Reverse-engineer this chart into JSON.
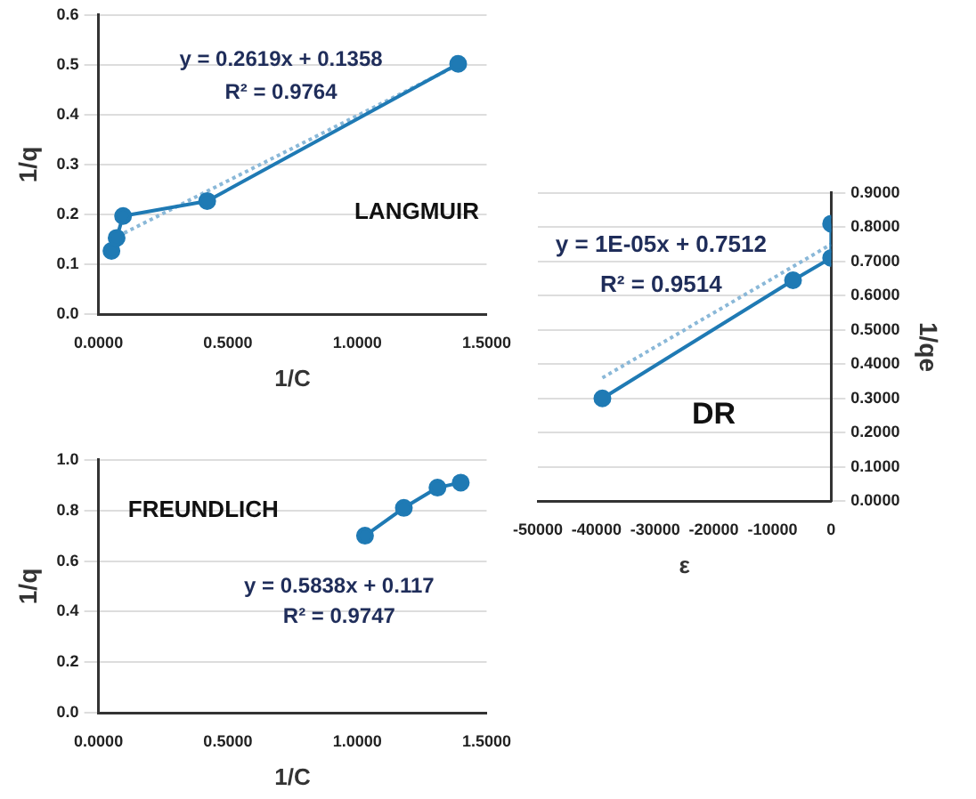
{
  "chart_data": [
    {
      "type": "line",
      "xlabel": "1/C",
      "ylabel": "1/q",
      "xlim": [
        0,
        1.5
      ],
      "ylim": [
        0,
        0.6
      ],
      "xticks": [
        {
          "value": 0,
          "label": "0.0000"
        },
        {
          "value": 0.5,
          "label": "0.5000"
        },
        {
          "value": 1,
          "label": "1.0000"
        },
        {
          "value": 1.5,
          "label": "1.5000"
        }
      ],
      "yticks": [
        {
          "value": 0,
          "label": "0.0"
        },
        0.1,
        0.2,
        0.3,
        0.4,
        0.5,
        0.6
      ],
      "grid": "y",
      "legend": false,
      "annotations": [
        "y = 0.2619x + 0.1358",
        "R² = 0.9764",
        "LANGMUIR"
      ],
      "series": [
        {
          "color": "#1f7ab4",
          "marker": "circle",
          "line_style": "solid",
          "x": [
            0.05,
            0.07,
            0.095,
            0.42,
            1.39
          ],
          "values": [
            0.127,
            0.153,
            0.197,
            0.227,
            0.502
          ]
        },
        {
          "type": "line",
          "color": "#8ab8d8",
          "marker": "none",
          "line_style": "dotted",
          "x": [
            0.05,
            1.39
          ],
          "values": [
            0.15,
            0.5
          ]
        }
      ]
    },
    {
      "type": "line",
      "xlabel": "1/C",
      "ylabel": "1/q",
      "xlim": [
        0,
        1.5
      ],
      "ylim": [
        0,
        1
      ],
      "xticks": [
        {
          "value": 0,
          "label": "0.0000"
        },
        {
          "value": 0.5,
          "label": "0.5000"
        },
        {
          "value": 1,
          "label": "1.0000"
        },
        {
          "value": 1.5,
          "label": "1.5000"
        }
      ],
      "yticks": [
        {
          "value": 0,
          "label": "0.0"
        },
        0.2,
        0.4,
        0.6,
        0.8,
        {
          "value": 1,
          "label": "1.0"
        }
      ],
      "grid": "y",
      "legend": false,
      "annotations": [
        "FREUNDLICH",
        "y = 0.5838x + 0.117",
        "R² = 0.9747"
      ],
      "series": [
        {
          "color": "#1f7ab4",
          "marker": "circle",
          "line_style": "solid",
          "x": [
            1.03,
            1.18,
            1.31,
            1.4
          ],
          "values": [
            0.7,
            0.81,
            0.89,
            0.91
          ]
        }
      ]
    },
    {
      "type": "line",
      "xlabel": "ε",
      "ylabel": "1/qe",
      "xlim": [
        -50000,
        0
      ],
      "ylim": [
        0,
        0.9
      ],
      "xticks": [
        -50000,
        -40000,
        -30000,
        -20000,
        -10000,
        0
      ],
      "yticks": [
        {
          "value": 0,
          "label": "0.0000"
        },
        {
          "value": 0.1,
          "label": "0.1000"
        },
        {
          "value": 0.2,
          "label": "0.2000"
        },
        {
          "value": 0.3,
          "label": "0.3000"
        },
        {
          "value": 0.4,
          "label": "0.4000"
        },
        {
          "value": 0.5,
          "label": "0.5000"
        },
        {
          "value": 0.6,
          "label": "0.6000"
        },
        {
          "value": 0.7,
          "label": "0.7000"
        },
        {
          "value": 0.8,
          "label": "0.8000"
        },
        {
          "value": 0.9,
          "label": "0.9000"
        }
      ],
      "grid": "y",
      "legend": false,
      "annotations": [
        "y = 1E-05x + 0.7512",
        "R² = 0.9514",
        "DR"
      ],
      "series": [
        {
          "color": "#1f7ab4",
          "marker": "circle",
          "line_style": "solid",
          "x": [
            -39000,
            -6500,
            0,
            0
          ],
          "values": [
            0.3,
            0.645,
            0.71,
            0.81
          ]
        },
        {
          "type": "line",
          "color": "#8ab8d8",
          "marker": "none",
          "line_style": "dotted",
          "x": [
            -39000,
            0
          ],
          "values": [
            0.36,
            0.75
          ]
        }
      ]
    }
  ]
}
